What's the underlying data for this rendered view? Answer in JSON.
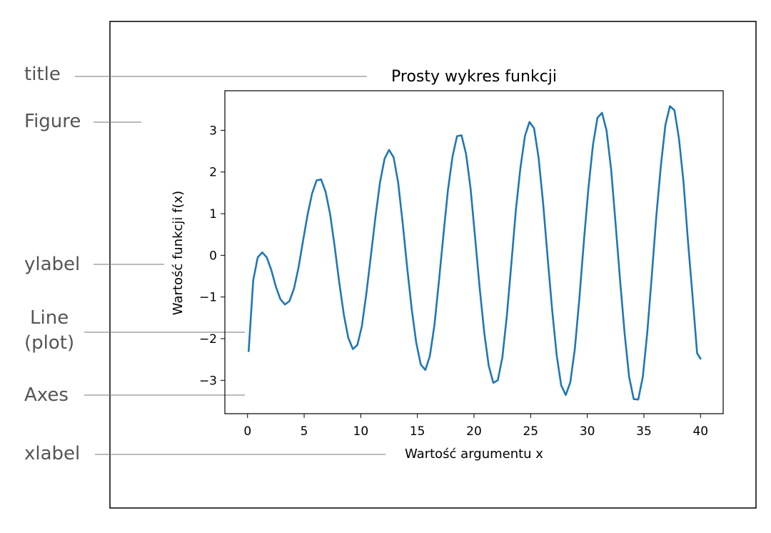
{
  "annotations": {
    "title": "title",
    "figure": "Figure",
    "ylabel": "ylabel",
    "line_1": "Line",
    "line_2": "(plot)",
    "axes": "Axes",
    "xlabel": "xlabel"
  },
  "chart_data": {
    "type": "line",
    "title": "Prosty wykres funkcji",
    "xlabel": "Wartość argumentu x",
    "ylabel": "Wartość funkcji f(x)",
    "xlim": [
      -2,
      42
    ],
    "ylim": [
      -3.8,
      3.95
    ],
    "xticks": [
      0,
      5,
      10,
      15,
      20,
      25,
      30,
      35,
      40
    ],
    "xtick_labels": [
      "0",
      "5",
      "10",
      "15",
      "20",
      "25",
      "30",
      "35",
      "40"
    ],
    "yticks": [
      -3,
      -2,
      -1,
      0,
      1,
      2,
      3
    ],
    "ytick_labels": [
      "−3",
      "−2",
      "−1",
      "0",
      "1",
      "2",
      "3"
    ],
    "grid": false,
    "color": "#1f77b4",
    "series": [
      {
        "x": [
          0.1,
          0.5,
          0.9,
          1.3,
          1.7,
          2.1,
          2.5,
          2.9,
          3.3,
          3.7,
          4.1,
          4.5,
          4.9,
          5.3,
          5.7,
          6.1,
          6.5,
          6.9,
          7.3,
          7.7,
          8.1,
          8.5,
          8.9,
          9.3,
          9.7,
          10.1,
          10.5,
          10.9,
          11.3,
          11.7,
          12.1,
          12.5,
          12.9,
          13.3,
          13.7,
          14.1,
          14.5,
          14.9,
          15.3,
          15.7,
          16.1,
          16.5,
          16.9,
          17.3,
          17.7,
          18.1,
          18.5,
          18.9,
          19.3,
          19.7,
          20.1,
          20.5,
          20.9,
          21.3,
          21.7,
          22.1,
          22.5,
          22.9,
          23.3,
          23.7,
          24.1,
          24.5,
          24.9,
          25.3,
          25.7,
          26.1,
          26.5,
          26.9,
          27.3,
          27.7,
          28.1,
          28.5,
          28.9,
          29.3,
          29.7,
          30.1,
          30.5,
          30.9,
          31.3,
          31.7,
          32.1,
          32.5,
          32.9,
          33.3,
          33.7,
          34.1,
          34.5,
          34.9,
          35.3,
          35.7,
          36.1,
          36.5,
          36.9,
          37.3,
          37.7,
          38.1,
          38.5,
          38.9,
          39.3,
          39.7,
          40.0
        ],
        "y": [
          -2.3,
          -0.6,
          -0.05,
          0.07,
          -0.05,
          -0.35,
          -0.75,
          -1.05,
          -1.18,
          -1.1,
          -0.8,
          -0.3,
          0.35,
          0.97,
          1.48,
          1.8,
          1.82,
          1.52,
          0.98,
          0.2,
          -0.65,
          -1.42,
          -1.98,
          -2.25,
          -2.15,
          -1.7,
          -0.9,
          0.0,
          0.93,
          1.75,
          2.32,
          2.53,
          2.35,
          1.75,
          0.77,
          -0.3,
          -1.3,
          -2.1,
          -2.62,
          -2.75,
          -2.42,
          -1.68,
          -0.63,
          0.5,
          1.57,
          2.37,
          2.86,
          2.88,
          2.43,
          1.6,
          0.41,
          -0.78,
          -1.85,
          -2.65,
          -3.06,
          -3.0,
          -2.45,
          -1.45,
          -0.18,
          1.1,
          2.1,
          2.87,
          3.2,
          3.05,
          2.35,
          1.25,
          -0.05,
          -1.32,
          -2.4,
          -3.12,
          -3.35,
          -3.05,
          -2.25,
          -1.05,
          0.34,
          1.6,
          2.65,
          3.3,
          3.42,
          3.0,
          2.07,
          0.76,
          -0.6,
          -1.88,
          -2.92,
          -3.45,
          -3.46,
          -2.92,
          -1.85,
          -0.47,
          0.95,
          2.16,
          3.13,
          3.58,
          3.48,
          2.8,
          1.75,
          0.32,
          -1.0,
          -2.35,
          -2.48
        ]
      }
    ]
  }
}
